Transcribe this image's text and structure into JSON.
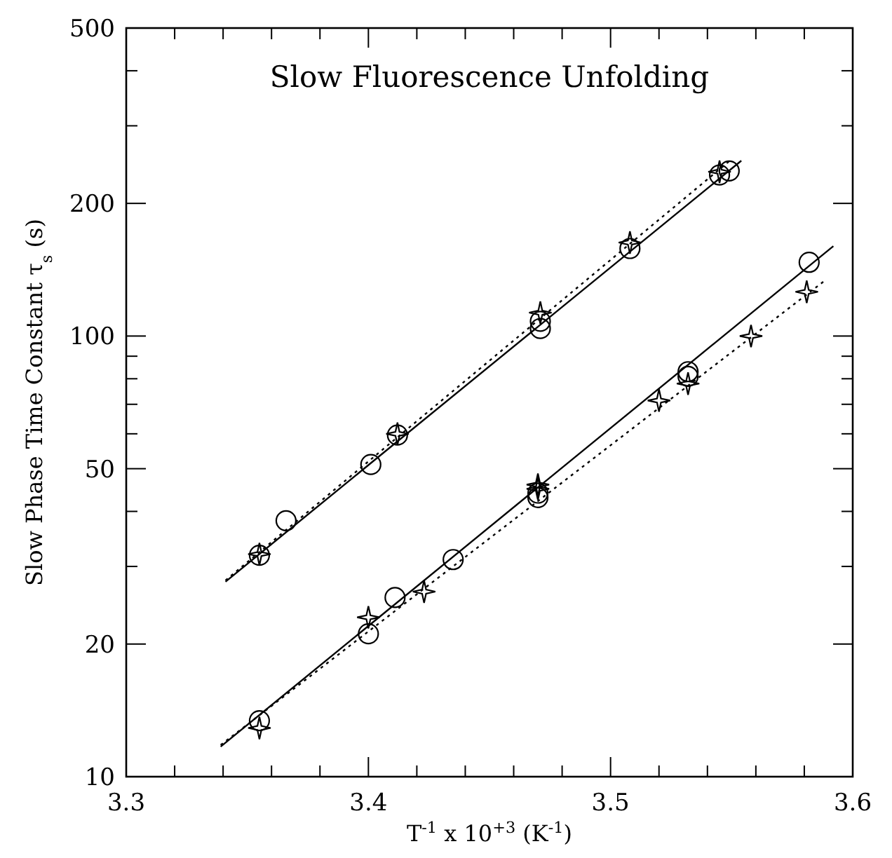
{
  "chart_data": {
    "type": "scatter",
    "title": "Slow Fluorescence Unfolding",
    "xlabel": "T$^{-1}$ x 10$^{+3}$ (K$^{-1}$)",
    "ylabel": "Slow Phase Time Constant τ$_{s}$ (s)",
    "log": "y",
    "grid": false,
    "xlim": [
      3.3,
      3.6
    ],
    "ylim": [
      10,
      500
    ],
    "xticks": [
      3.3,
      {
        "value": 3.32,
        "label": null
      },
      {
        "value": 3.34,
        "label": null
      },
      {
        "value": 3.36,
        "label": null
      },
      {
        "value": 3.38,
        "label": null
      },
      3.4,
      {
        "value": 3.42,
        "label": null
      },
      {
        "value": 3.44,
        "label": null
      },
      {
        "value": 3.46,
        "label": null
      },
      {
        "value": 3.48,
        "label": null
      },
      3.5,
      {
        "value": 3.52,
        "label": null
      },
      {
        "value": 3.54,
        "label": null
      },
      {
        "value": 3.56,
        "label": null
      },
      {
        "value": 3.58,
        "label": null
      },
      3.6
    ],
    "yticks": [
      10,
      20,
      {
        "value": 30,
        "label": null
      },
      {
        "value": 40,
        "label": null
      },
      50,
      {
        "value": 60,
        "label": null
      },
      {
        "value": 70,
        "label": null
      },
      {
        "value": 80,
        "label": null
      },
      {
        "value": 90,
        "label": null
      },
      100,
      200,
      {
        "value": 300,
        "label": null
      },
      {
        "value": 400,
        "label": null
      },
      500
    ],
    "series": [
      {
        "marker": "circle",
        "color": "#000000",
        "x": [
          3.355,
          3.366,
          3.401,
          3.412,
          3.471,
          3.471,
          3.508,
          3.545,
          3.549
        ],
        "values": [
          31.8,
          38.1,
          51.1,
          59.6,
          108,
          104,
          158,
          232,
          237
        ]
      },
      {
        "marker": "star",
        "color": "#000000",
        "x": [
          3.355,
          3.412,
          3.471,
          3.508,
          3.545
        ],
        "values": [
          32,
          60,
          113,
          163,
          236
        ]
      },
      {
        "marker": "circle",
        "color": "#000000",
        "x": [
          3.355,
          3.4,
          3.411,
          3.435,
          3.47,
          3.47,
          3.532,
          3.532,
          3.582
        ],
        "values": [
          13.4,
          21.1,
          25.5,
          31.1,
          44,
          43,
          83,
          81,
          147
        ]
      },
      {
        "marker": "star",
        "color": "#000000",
        "x": [
          3.355,
          3.4,
          3.423,
          3.47,
          3.47,
          3.52,
          3.532,
          3.558,
          3.581
        ],
        "values": [
          12.9,
          23,
          26.3,
          46,
          45,
          71.4,
          78,
          100,
          126
        ]
      },
      {
        "type": "line",
        "marker": "none",
        "line_style": "solid",
        "color": "#000000",
        "x": [
          3.341,
          3.554
        ],
        "values": [
          27.7,
          250
        ]
      },
      {
        "type": "line",
        "marker": "none",
        "line_style": "dotted",
        "color": "#000000",
        "x": [
          3.341,
          3.55
        ],
        "values": [
          27.9,
          252
        ]
      },
      {
        "type": "line",
        "marker": "none",
        "line_style": "solid",
        "color": "#000000",
        "x": [
          3.339,
          3.592
        ],
        "values": [
          11.7,
          160
        ]
      },
      {
        "type": "line",
        "marker": "none",
        "line_style": "dotted",
        "color": "#000000",
        "x": [
          3.339,
          3.588
        ],
        "values": [
          11.8,
          133
        ]
      }
    ]
  }
}
